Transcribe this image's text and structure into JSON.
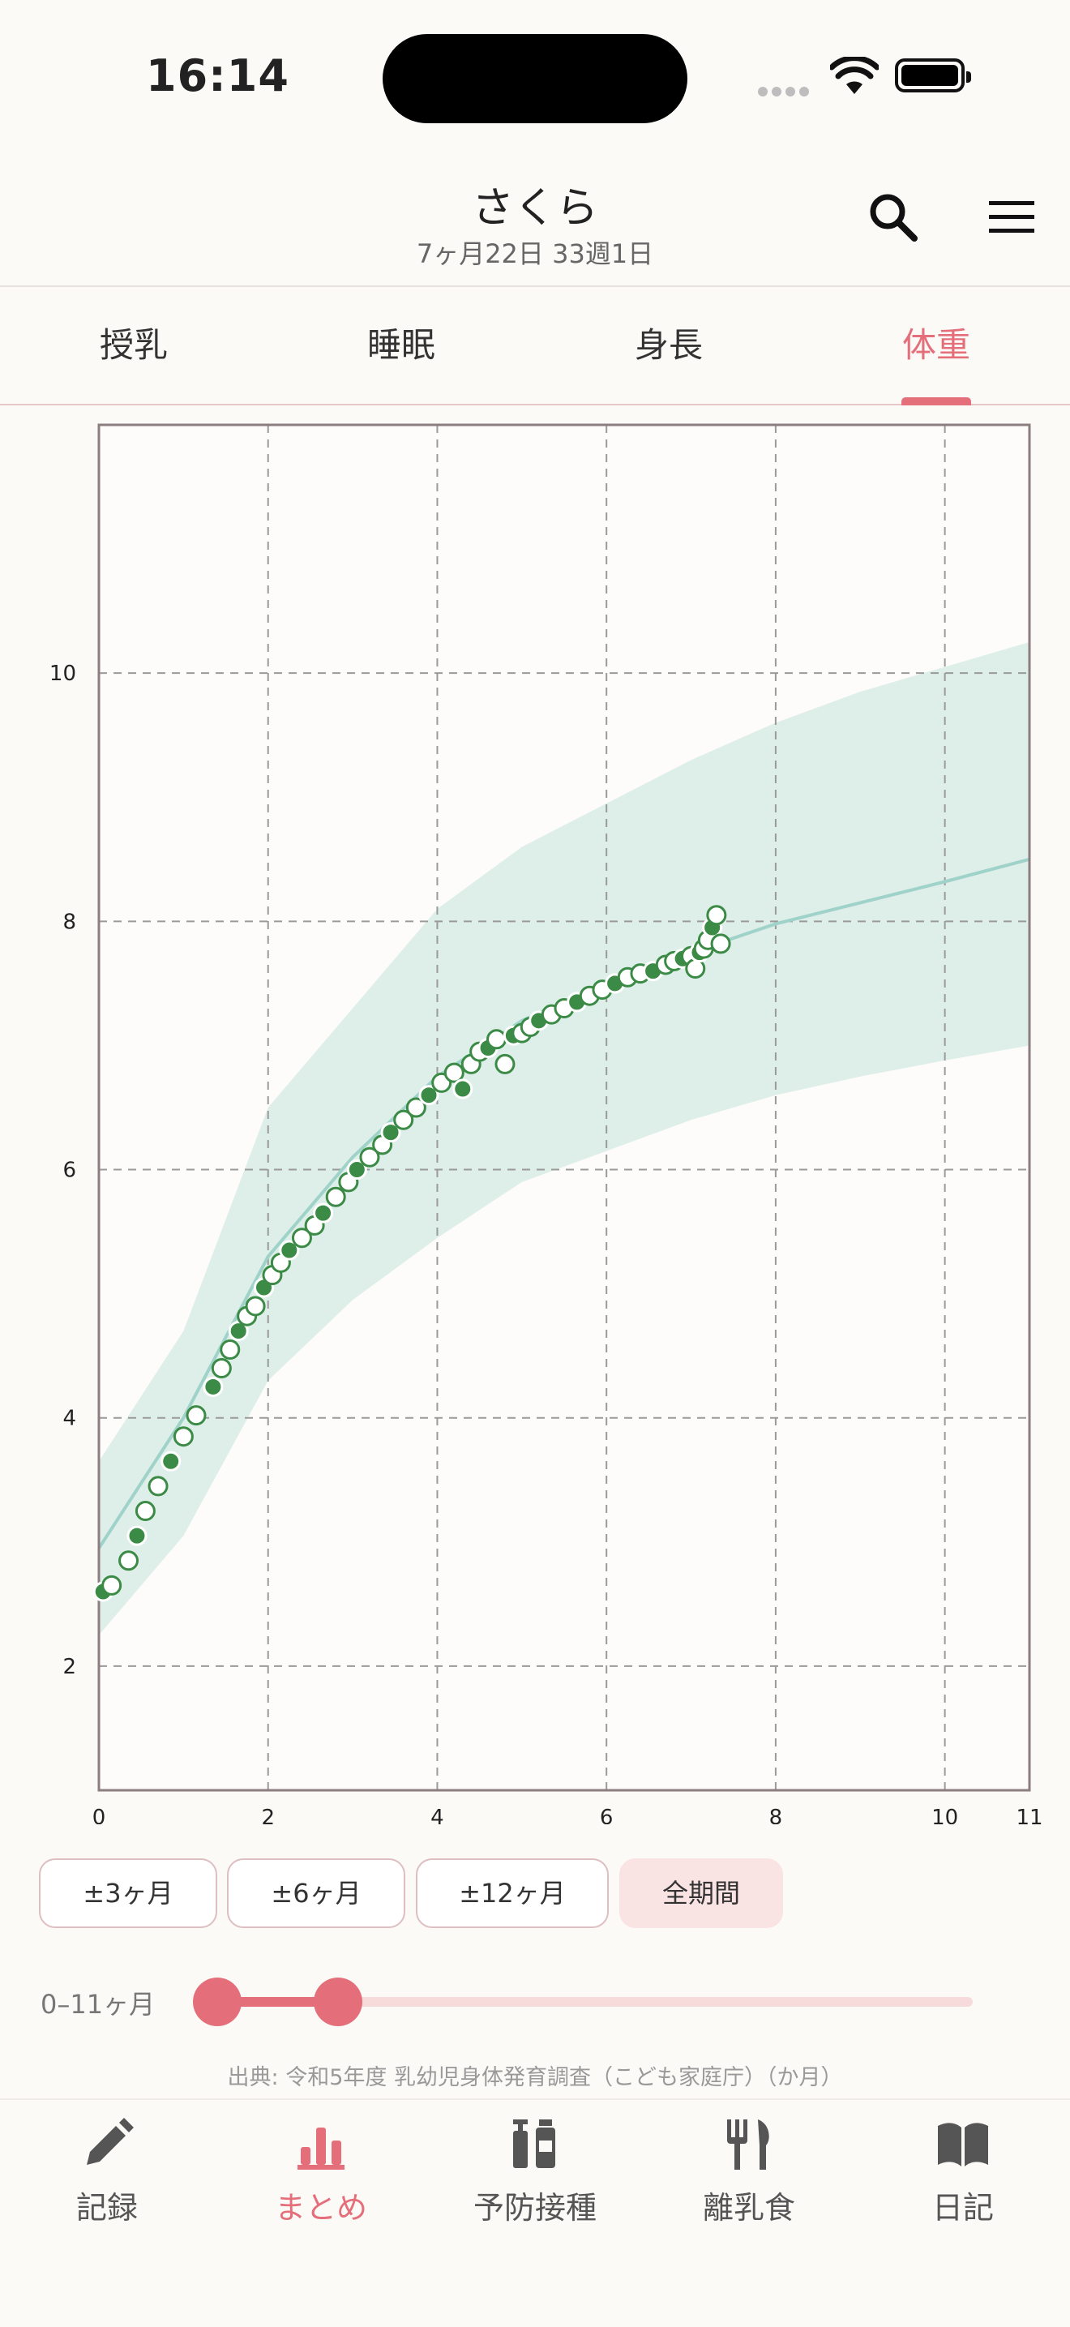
{
  "status_bar": {
    "time": "16:14"
  },
  "header": {
    "title": "さくら",
    "subtitle": "7ヶ月22日  33週1日"
  },
  "tabs": [
    {
      "label": "授乳"
    },
    {
      "label": "睡眠"
    },
    {
      "label": "身長"
    },
    {
      "label": "体重",
      "active": true
    }
  ],
  "chart_data": {
    "type": "scatter",
    "title": "",
    "xlabel": "",
    "ylabel": "",
    "xlim": [
      0,
      11
    ],
    "ylim": [
      1,
      12
    ],
    "xticks": [
      0,
      2,
      4,
      6,
      8,
      10,
      11
    ],
    "yticks": [
      2,
      4,
      6,
      8,
      10
    ],
    "grid": true,
    "reference_band": {
      "x": [
        0,
        1,
        2,
        3,
        4,
        5,
        6,
        7,
        8,
        9,
        10,
        11
      ],
      "lower": [
        2.25,
        3.05,
        4.3,
        4.95,
        5.45,
        5.9,
        6.15,
        6.4,
        6.6,
        6.75,
        6.88,
        7.0
      ],
      "median": [
        2.95,
        4.0,
        5.3,
        6.1,
        6.75,
        7.2,
        7.5,
        7.75,
        7.98,
        8.15,
        8.32,
        8.5
      ],
      "upper": [
        3.65,
        4.7,
        6.5,
        7.3,
        8.1,
        8.6,
        8.95,
        9.3,
        9.6,
        9.85,
        10.05,
        10.25
      ]
    },
    "series": [
      {
        "x": [
          0.05,
          0.15,
          0.35,
          0.45,
          0.55,
          0.7,
          0.85,
          1.0,
          1.15,
          1.35,
          1.45,
          1.55,
          1.65,
          1.75,
          1.85,
          1.95,
          2.05,
          2.15,
          2.25,
          2.4,
          2.55,
          2.65,
          2.8,
          2.95,
          3.05,
          3.2,
          3.35,
          3.45,
          3.6,
          3.75,
          3.9,
          4.05,
          4.2,
          4.3,
          4.4,
          4.5,
          4.6,
          4.7,
          4.8,
          4.9,
          5.0,
          5.1,
          5.2,
          5.35,
          5.5,
          5.65,
          5.8,
          5.95,
          6.1,
          6.25,
          6.4,
          6.55,
          6.7,
          6.8,
          6.9,
          7.0,
          7.05,
          7.1,
          7.15,
          7.2,
          7.25,
          7.3,
          7.35
        ],
        "y": [
          2.6,
          2.65,
          2.85,
          3.05,
          3.25,
          3.45,
          3.65,
          3.85,
          4.02,
          4.25,
          4.4,
          4.55,
          4.7,
          4.82,
          4.9,
          5.05,
          5.15,
          5.25,
          5.35,
          5.45,
          5.55,
          5.65,
          5.78,
          5.9,
          6.0,
          6.1,
          6.2,
          6.3,
          6.4,
          6.5,
          6.6,
          6.7,
          6.78,
          6.65,
          6.85,
          6.95,
          6.98,
          7.05,
          6.85,
          7.08,
          7.1,
          7.15,
          7.2,
          7.25,
          7.3,
          7.35,
          7.4,
          7.45,
          7.5,
          7.55,
          7.58,
          7.6,
          7.65,
          7.68,
          7.7,
          7.72,
          7.62,
          7.75,
          7.78,
          7.85,
          7.95,
          8.05,
          7.82
        ]
      }
    ]
  },
  "range_chips": [
    {
      "label": "±3ヶ月"
    },
    {
      "label": "±6ヶ月"
    },
    {
      "label": "±12ヶ月"
    },
    {
      "label": "全期間",
      "active": true
    }
  ],
  "range_slider": {
    "label": "0–11ヶ月",
    "start_fraction": 0.0,
    "end_fraction": 0.16
  },
  "source_note": "出典: 令和5年度 乳幼児身体発育調査（こども家庭庁）（か月）",
  "bottom_nav": [
    {
      "label": "記録",
      "icon": "pencil-icon"
    },
    {
      "label": "まとめ",
      "icon": "bar-chart-icon",
      "active": true
    },
    {
      "label": "予防接種",
      "icon": "vaccine-icon"
    },
    {
      "label": "離乳食",
      "icon": "fork-knife-icon"
    },
    {
      "label": "日記",
      "icon": "book-icon"
    }
  ],
  "colors": {
    "accent": "#e46f7a",
    "band": "#d8ece6",
    "median_line": "#9fd2c8",
    "point_green": "#3b8a45"
  }
}
